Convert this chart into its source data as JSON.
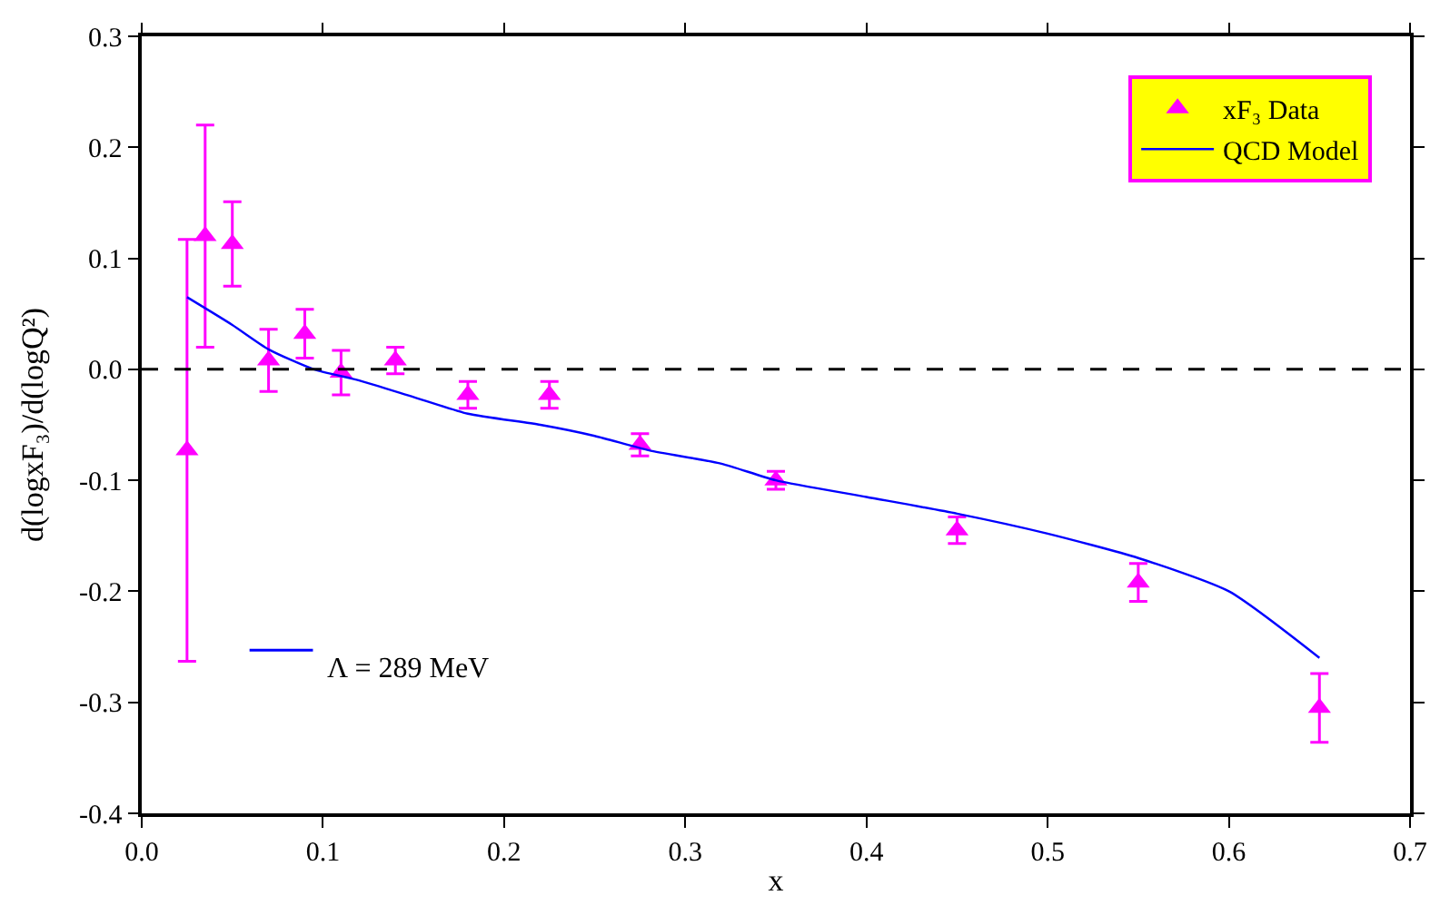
{
  "chart_data": {
    "type": "scatter",
    "xlabel": "x",
    "ylabel": "d(logxF₃)/d(logQ²)",
    "xlim": [
      0.0,
      0.7
    ],
    "xticks": [
      {
        "value": 0,
        "label": "0.0"
      },
      0.1,
      0.2,
      0.3,
      0.4,
      0.5,
      0.6,
      0.7
    ],
    "ylim": [
      -0.4,
      0.3
    ],
    "yticks": [
      -0.4,
      -0.3,
      -0.2,
      -0.1,
      {
        "value": 0,
        "label": "0.0"
      },
      0.1,
      0.2,
      0.3
    ],
    "legend": "top right",
    "series": [
      {
        "name": "xF₃ Data",
        "marker": "triangle",
        "color": "#ff00ff",
        "x": [
          0.025,
          0.035,
          0.05,
          0.07,
          0.09,
          0.11,
          0.14,
          0.18,
          0.225,
          0.275,
          0.35,
          0.45,
          0.55,
          0.65
        ],
        "values": [
          -0.073,
          0.12,
          0.113,
          0.008,
          0.032,
          -0.003,
          0.008,
          -0.023,
          -0.023,
          -0.068,
          -0.1,
          -0.145,
          -0.192,
          -0.305
        ],
        "errors": [
          0.19,
          0.1,
          0.038,
          0.028,
          0.022,
          0.02,
          0.012,
          0.012,
          0.012,
          0.01,
          0.008,
          0.012,
          0.017,
          0.031
        ]
      },
      {
        "name": "QCD Model",
        "type": "line",
        "color": "#0000ff",
        "x": [
          0.025,
          0.05,
          0.07,
          0.095,
          0.12,
          0.15,
          0.18,
          0.22,
          0.25,
          0.28,
          0.32,
          0.35,
          0.4,
          0.45,
          0.5,
          0.55,
          0.6,
          0.65
        ],
        "values": [
          0.065,
          0.04,
          0.018,
          0.0,
          -0.01,
          -0.025,
          -0.04,
          -0.05,
          -0.06,
          -0.073,
          -0.085,
          -0.1,
          -0.115,
          -0.13,
          -0.148,
          -0.17,
          -0.2,
          -0.26
        ]
      }
    ],
    "ref_lines": [
      {
        "axis": "y",
        "value": 0,
        "color": "#000000",
        "line_style": "dashed"
      }
    ],
    "annotations": [
      "Λ = 289 MeV"
    ]
  }
}
